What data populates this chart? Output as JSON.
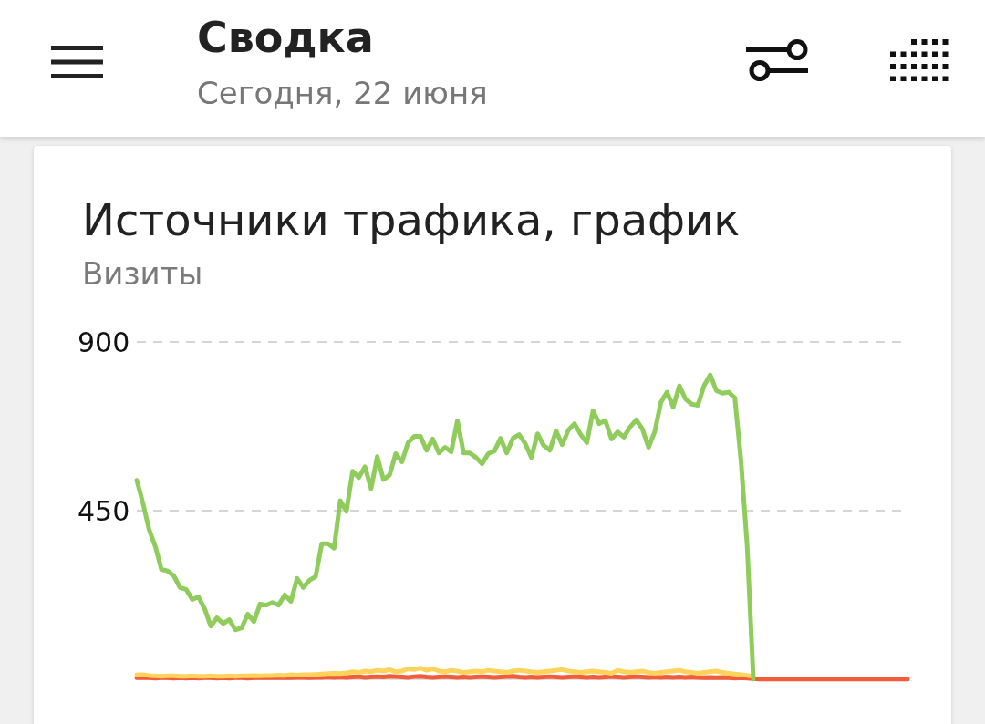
{
  "chart_data": {
    "type": "line",
    "title": "Источники трафика, график",
    "subtitle": "Визиты",
    "annotations": [
      "Сводка",
      "Сегодня, 22 июня"
    ],
    "categories": [
      null,
      null,
      null,
      null,
      null,
      null,
      null,
      null,
      null,
      null,
      null,
      null,
      null,
      null,
      null,
      null,
      null,
      null,
      null,
      null,
      null,
      null,
      null,
      null,
      null,
      null,
      null,
      null,
      null,
      null,
      null,
      null,
      null,
      null,
      null,
      null,
      null,
      null,
      null,
      null,
      null,
      null,
      null,
      null,
      null,
      null,
      null,
      null,
      null,
      null,
      null,
      null,
      null,
      null,
      null,
      null,
      null,
      null,
      null,
      null,
      null,
      null,
      null,
      null,
      null,
      null,
      null,
      null,
      null,
      null,
      null,
      null,
      null,
      null,
      null,
      null,
      null,
      null,
      null,
      null,
      null,
      null,
      null,
      null,
      null,
      null,
      null,
      null,
      null,
      null,
      null,
      null,
      null,
      null,
      null,
      null,
      null,
      null,
      null,
      null,
      null,
      null,
      null,
      null,
      null,
      null,
      null,
      null,
      null,
      null,
      null,
      null,
      null,
      null,
      null,
      null,
      null,
      null,
      null,
      null,
      null,
      null,
      null,
      null,
      null,
      null
    ],
    "series": [
      {
        "color": "#f25c3a",
        "values": [
          4,
          5,
          4,
          3,
          4,
          4,
          3,
          4,
          3,
          4,
          3,
          4,
          4,
          3,
          4,
          3,
          4,
          4,
          3,
          4,
          4,
          5,
          4,
          4,
          5,
          4,
          5,
          5,
          4,
          5,
          5,
          6,
          5,
          6,
          5,
          6,
          7,
          5,
          6,
          7,
          6,
          8,
          7,
          6,
          5,
          7,
          8,
          6,
          5,
          6,
          7,
          6,
          5,
          6,
          5,
          6,
          7,
          6,
          5,
          6,
          7,
          8,
          6,
          5,
          6,
          5,
          6,
          7,
          6,
          5,
          6,
          7,
          6,
          5,
          6,
          5,
          6,
          7,
          6,
          5,
          6,
          7,
          6,
          5,
          6,
          5,
          6,
          5,
          6,
          5,
          6,
          5,
          4,
          5,
          4,
          5,
          4,
          3,
          4,
          3,
          2,
          0,
          0,
          0,
          0,
          0,
          0,
          0,
          0,
          0,
          0,
          0,
          0,
          0,
          0,
          0,
          0,
          0,
          0,
          0,
          0,
          0,
          0,
          0,
          0,
          0
        ]
      },
      {
        "color": "#fdd35c",
        "values": [
          12,
          12,
          10,
          9,
          8,
          9,
          9,
          8,
          8,
          9,
          8,
          8,
          9,
          8,
          8,
          9,
          8,
          9,
          9,
          10,
          9,
          10,
          10,
          11,
          10,
          12,
          11,
          12,
          12,
          13,
          14,
          15,
          16,
          15,
          17,
          20,
          18,
          22,
          20,
          24,
          22,
          26,
          20,
          22,
          28,
          26,
          30,
          24,
          28,
          22,
          20,
          24,
          22,
          18,
          20,
          22,
          20,
          24,
          22,
          20,
          18,
          22,
          24,
          22,
          20,
          18,
          20,
          22,
          24,
          26,
          22,
          20,
          18,
          20,
          22,
          20,
          18,
          16,
          24,
          20,
          18,
          20,
          22,
          18,
          16,
          18,
          20,
          22,
          24,
          20,
          18,
          16,
          18,
          20,
          22,
          18,
          16,
          14,
          12,
          10,
          8,
          null,
          null,
          null,
          null,
          null,
          null,
          null,
          null,
          null,
          null,
          null,
          null,
          null,
          null,
          null,
          null,
          null,
          null,
          null,
          null,
          null,
          null,
          null,
          null,
          null
        ]
      },
      {
        "color": "#8fcc5c",
        "values": [
          531,
          470,
          399,
          355,
          293,
          289,
          276,
          245,
          240,
          213,
          220,
          188,
          142,
          164,
          149,
          159,
          132,
          137,
          174,
          154,
          201,
          198,
          205,
          198,
          225,
          208,
          269,
          245,
          264,
          274,
          362,
          362,
          350,
          477,
          448,
          555,
          538,
          567,
          509,
          594,
          533,
          545,
          602,
          580,
          631,
          648,
          648,
          611,
          641,
          604,
          619,
          607,
          690,
          604,
          604,
          592,
          575,
          602,
          609,
          643,
          604,
          643,
          653,
          629,
          592,
          655,
          624,
          611,
          663,
          626,
          665,
          682,
          653,
          631,
          717,
          682,
          690,
          641,
          660,
          646,
          673,
          692,
          668,
          619,
          660,
          739,
          766,
          726,
          783,
          748,
          734,
          731,
          783,
          812,
          770,
          763,
          766,
          751,
          582,
          355,
          0,
          null,
          null,
          null,
          null,
          null,
          null,
          null,
          null,
          null,
          null,
          null,
          null,
          null,
          null,
          null,
          null,
          null,
          null,
          null,
          null,
          null,
          null,
          null,
          null,
          null
        ]
      }
    ],
    "ylim": [
      0,
      900
    ],
    "yticks": [
      450,
      900
    ],
    "grid": "y",
    "tick_labels": "y",
    "line_style": "solid"
  }
}
